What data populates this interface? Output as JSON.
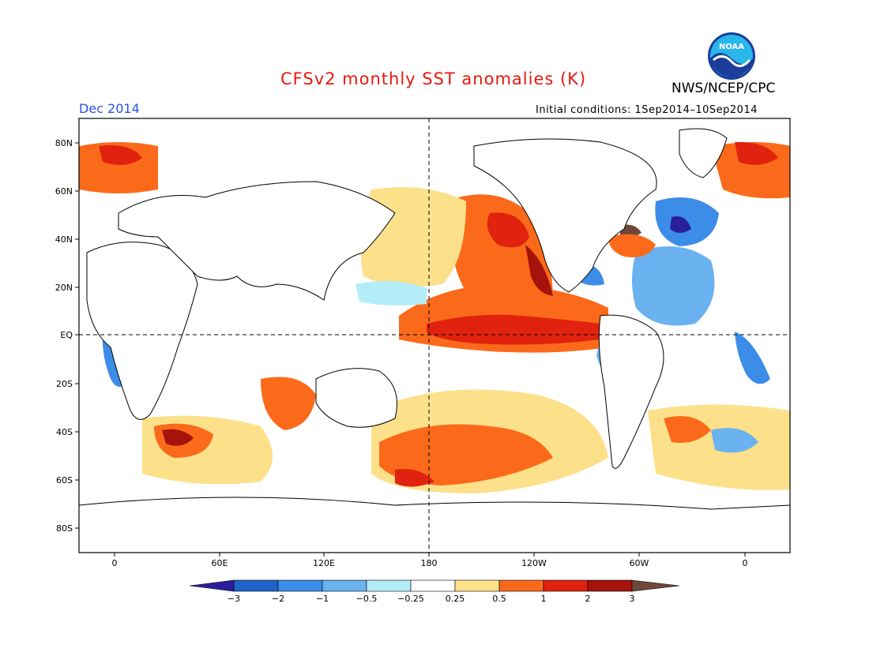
{
  "header": {
    "title": "CFSv2 monthly SST anomalies (K)",
    "org": "NWS/NCEP/CPC",
    "period": "Dec 2014",
    "initial_conditions": "Initial conditions: 1Sep2014–10Sep2014",
    "logo_text": "NOAA"
  },
  "map": {
    "lat_labels": [
      "80N",
      "60N",
      "40N",
      "20N",
      "EQ",
      "20S",
      "40S",
      "60S",
      "80S"
    ],
    "lon_labels": [
      "0",
      "60E",
      "120E",
      "180",
      "120W",
      "60W",
      "0"
    ]
  },
  "colorbar": {
    "labels": [
      "−3",
      "−2",
      "−1",
      "−0.5",
      "−0.25",
      "0.25",
      "0.5",
      "1",
      "2",
      "3"
    ],
    "colors": [
      "#2a1e9e",
      "#1e63c8",
      "#3c8de8",
      "#6ab2f0",
      "#b4ecf8",
      "#ffffff",
      "#fde08a",
      "#fb6a1a",
      "#e0220e",
      "#a5130c",
      "#6e4838"
    ]
  }
}
